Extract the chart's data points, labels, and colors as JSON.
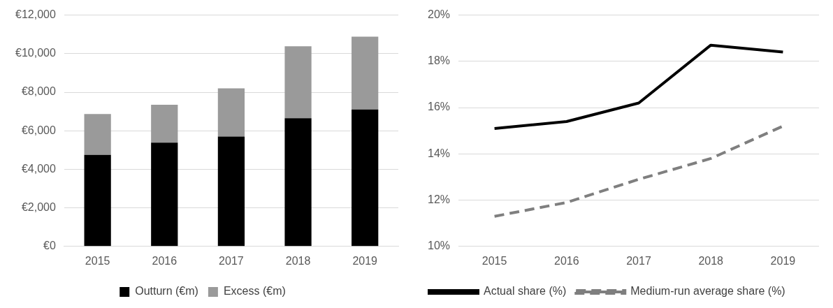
{
  "chart_data": [
    {
      "type": "bar",
      "stacked": true,
      "categories": [
        "2015",
        "2016",
        "2017",
        "2018",
        "2019"
      ],
      "series": [
        {
          "name": "Outturn (€m)",
          "color": "#000000",
          "values": [
            4750,
            5380,
            5700,
            6650,
            7100
          ]
        },
        {
          "name": "Excess (€m)",
          "color": "#9a9a9a",
          "values": [
            2120,
            1970,
            2500,
            3730,
            3780
          ]
        }
      ],
      "ylim": [
        0,
        12000
      ],
      "yticks": [
        {
          "value": 0,
          "label": "€0"
        },
        {
          "value": 2000,
          "label": "€2,000"
        },
        {
          "value": 4000,
          "label": "€4,000"
        },
        {
          "value": 6000,
          "label": "€6,000"
        },
        {
          "value": 8000,
          "label": "€8,000"
        },
        {
          "value": 10000,
          "label": "€10,000"
        },
        {
          "value": 12000,
          "label": "€12,000"
        }
      ],
      "grid": "y",
      "legend": "bottom"
    },
    {
      "type": "line",
      "categories": [
        "2015",
        "2016",
        "2017",
        "2018",
        "2019"
      ],
      "series": [
        {
          "name": "Actual share (%)",
          "color": "#000000",
          "values": [
            15.1,
            15.4,
            16.2,
            18.7,
            18.4
          ],
          "line_style": "solid"
        },
        {
          "name": "Medium-run average share (%)",
          "color": "#7f7f7f",
          "values": [
            11.3,
            11.9,
            12.9,
            13.8,
            15.2
          ],
          "line_style": "dashed"
        }
      ],
      "ylim": [
        10,
        20
      ],
      "yticks": [
        {
          "value": 10,
          "label": "10%"
        },
        {
          "value": 12,
          "label": "12%"
        },
        {
          "value": 14,
          "label": "14%"
        },
        {
          "value": 16,
          "label": "16%"
        },
        {
          "value": 18,
          "label": "18%"
        },
        {
          "value": 20,
          "label": "20%"
        }
      ],
      "grid": "y",
      "legend": "bottom left",
      "marker": "none"
    }
  ]
}
